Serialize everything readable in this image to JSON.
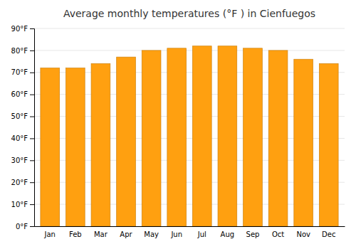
{
  "chart_data": {
    "type": "bar",
    "title": "Average monthly temperatures (°F ) in Cienfuegos",
    "categories": [
      "Jan",
      "Feb",
      "Mar",
      "Apr",
      "May",
      "Jun",
      "Jul",
      "Aug",
      "Sep",
      "Oct",
      "Nov",
      "Dec"
    ],
    "values": [
      72,
      72,
      74,
      77,
      80,
      81,
      82,
      82,
      81,
      80,
      76,
      74
    ],
    "color": "#FFA010",
    "ylim": [
      0,
      90
    ],
    "yticks": [
      {
        "value": 0,
        "label": "0°F"
      },
      {
        "value": 10,
        "label": "10°F"
      },
      {
        "value": 20,
        "label": "20°F"
      },
      {
        "value": 30,
        "label": "30°F"
      },
      {
        "value": 40,
        "label": "40°F"
      },
      {
        "value": 50,
        "label": "50°F"
      },
      {
        "value": 60,
        "label": "60°F"
      },
      {
        "value": 70,
        "label": "70°F"
      },
      {
        "value": 80,
        "label": "80°F"
      },
      {
        "value": 90,
        "label": "90°F"
      }
    ],
    "grid": true
  }
}
